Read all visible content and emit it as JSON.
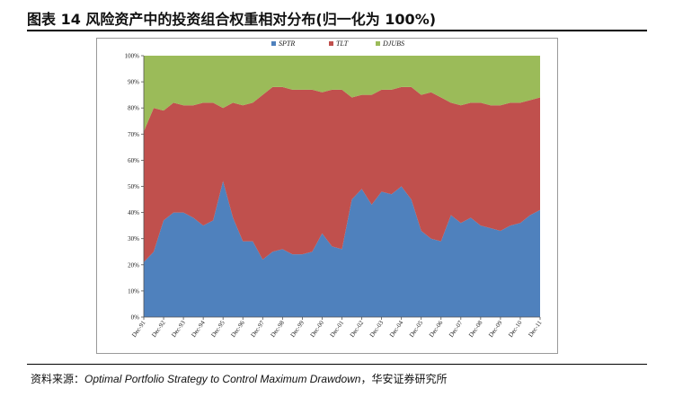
{
  "header": {
    "title": "图表 14  风险资产中的投资组合权重相对分布(归一化为 100%)"
  },
  "footer": {
    "source_label": "资料来源：",
    "source_text": "Optimal Portfolio Strategy to Control Maximum Drawdown",
    "source_suffix": "，华安证券研究所"
  },
  "colors": {
    "SPTR": "#4F81BD",
    "TLT": "#C0504D",
    "DJUBS": "#9BBB59"
  },
  "chart_data": {
    "type": "area",
    "stacked": true,
    "title": "",
    "xlabel": "",
    "ylabel": "",
    "ylim": [
      0,
      100
    ],
    "y_ticks": [
      "0%",
      "10%",
      "20%",
      "30%",
      "40%",
      "50%",
      "60%",
      "70%",
      "80%",
      "90%",
      "100%"
    ],
    "categories": [
      "Dec-91",
      "Dec-92",
      "Dec-93",
      "Dec-94",
      "Dec-95",
      "Dec-96",
      "Dec-97",
      "Dec-98",
      "Dec-99",
      "Dec-00",
      "Dec-01",
      "Dec-02",
      "Dec-03",
      "Dec-04",
      "Dec-05",
      "Dec-06",
      "Dec-07",
      "Dec-08",
      "Dec-09",
      "Dec-10",
      "Dec-11"
    ],
    "legend_position": "top-center",
    "x": [
      0,
      0.5,
      1,
      1.5,
      2,
      2.5,
      3,
      3.5,
      4,
      4.5,
      5,
      5.5,
      6,
      6.5,
      7,
      7.5,
      8,
      8.5,
      9,
      9.5,
      10,
      10.5,
      11,
      11.5,
      12,
      12.5,
      13,
      13.5,
      14,
      14.5,
      15,
      15.5,
      16,
      16.5,
      17,
      17.5,
      18,
      18.5,
      19,
      19.5,
      20
    ],
    "series": [
      {
        "name": "SPTR",
        "values": [
          21,
          25,
          37,
          40,
          40,
          38,
          35,
          37,
          52,
          38,
          29,
          29,
          22,
          25,
          26,
          24,
          24,
          25,
          32,
          27,
          26,
          45,
          49,
          43,
          48,
          47,
          50,
          45,
          33,
          30,
          29,
          39,
          36,
          38,
          35,
          34,
          33,
          35,
          36,
          39,
          41
        ]
      },
      {
        "name": "TLT",
        "values": [
          50,
          55,
          42,
          42,
          41,
          43,
          47,
          45,
          28,
          44,
          52,
          53,
          63,
          63,
          62,
          63,
          63,
          62,
          54,
          60,
          61,
          39,
          36,
          42,
          39,
          40,
          38,
          43,
          52,
          56,
          55,
          43,
          45,
          44,
          47,
          47,
          48,
          47,
          46,
          44,
          43
        ]
      },
      {
        "name": "DJUBS",
        "values": [
          29,
          20,
          21,
          18,
          19,
          19,
          18,
          18,
          20,
          18,
          19,
          18,
          15,
          12,
          12,
          13,
          13,
          13,
          14,
          13,
          13,
          16,
          15,
          15,
          13,
          13,
          12,
          12,
          15,
          14,
          16,
          18,
          19,
          18,
          18,
          19,
          19,
          18,
          18,
          17,
          16
        ]
      }
    ]
  }
}
